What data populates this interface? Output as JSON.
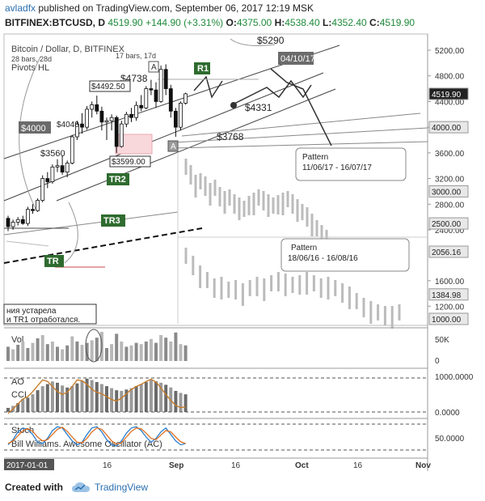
{
  "header": {
    "author": "avladfx",
    "published_text": "published on TradingView.com, September 06, 2017 12:19 MSK",
    "symbol": "BITFINEX:BTCUSD, D",
    "last": "4519.90",
    "change": "+144.90 (+3.31%)",
    "open_label": "O:",
    "open": "4375.00",
    "high_label": "H:",
    "high": "4538.40",
    "low_label": "L:",
    "low": "4352.40",
    "close_label": "C:",
    "close": "4519.90"
  },
  "chart_data": {
    "type": "candlestick",
    "title": "Bitcoin / Dollar, D, BITFINEX",
    "indicator_label": "Pivots HL",
    "bars_info_left": "28 bars, 28d",
    "bars_info_right": "17 bars, 17d",
    "ylim": [
      1000,
      5400
    ],
    "yticks": [
      5200,
      4800,
      4400,
      4000,
      3600,
      3200,
      2800,
      2400,
      1600,
      1200
    ],
    "price_tags": [
      "4519.90",
      "4000.00",
      "3000.00",
      "2500.00",
      "2056.16",
      "1384.98",
      "1000.00"
    ],
    "xticks": [
      "2017-01-01",
      "16",
      "Aug",
      "16",
      "Sep",
      "16",
      "Oct",
      "16",
      "Nov"
    ],
    "candles": [
      {
        "o": 2580,
        "h": 2620,
        "l": 2380,
        "c": 2450
      },
      {
        "o": 2450,
        "h": 2560,
        "l": 2400,
        "c": 2520
      },
      {
        "o": 2520,
        "h": 2600,
        "l": 2470,
        "c": 2560
      },
      {
        "o": 2560,
        "h": 2620,
        "l": 2480,
        "c": 2500
      },
      {
        "o": 2500,
        "h": 2760,
        "l": 2460,
        "c": 2720
      },
      {
        "o": 2720,
        "h": 2800,
        "l": 2650,
        "c": 2700
      },
      {
        "o": 2700,
        "h": 2890,
        "l": 2680,
        "c": 2860
      },
      {
        "o": 2860,
        "h": 3250,
        "l": 2830,
        "c": 3200
      },
      {
        "o": 3200,
        "h": 3300,
        "l": 3050,
        "c": 3150
      },
      {
        "o": 3150,
        "h": 3420,
        "l": 3120,
        "c": 3380
      },
      {
        "o": 3380,
        "h": 3500,
        "l": 3300,
        "c": 3400
      },
      {
        "o": 3400,
        "h": 3560,
        "l": 3260,
        "c": 3300
      },
      {
        "o": 3300,
        "h": 3480,
        "l": 3220,
        "c": 3440
      },
      {
        "o": 3440,
        "h": 3880,
        "l": 3420,
        "c": 3850
      },
      {
        "o": 3850,
        "h": 4100,
        "l": 3800,
        "c": 4050
      },
      {
        "o": 4050,
        "h": 4220,
        "l": 3900,
        "c": 4000
      },
      {
        "o": 4000,
        "h": 4330,
        "l": 3960,
        "c": 4280
      },
      {
        "o": 4280,
        "h": 4400,
        "l": 4150,
        "c": 4350
      },
      {
        "o": 4350,
        "h": 4492,
        "l": 4200,
        "c": 4250
      },
      {
        "o": 4250,
        "h": 4320,
        "l": 3950,
        "c": 4080
      },
      {
        "o": 4080,
        "h": 4150,
        "l": 3800,
        "c": 4100
      },
      {
        "o": 4100,
        "h": 4200,
        "l": 3950,
        "c": 4150
      },
      {
        "o": 4150,
        "h": 4180,
        "l": 3599,
        "c": 3700
      },
      {
        "o": 3700,
        "h": 4100,
        "l": 3680,
        "c": 4050
      },
      {
        "o": 4050,
        "h": 4240,
        "l": 4000,
        "c": 4200
      },
      {
        "o": 4200,
        "h": 4300,
        "l": 4080,
        "c": 4150
      },
      {
        "o": 4150,
        "h": 4400,
        "l": 4100,
        "c": 4340
      },
      {
        "o": 4340,
        "h": 4500,
        "l": 4250,
        "c": 4300
      },
      {
        "o": 4300,
        "h": 4640,
        "l": 4280,
        "c": 4600
      },
      {
        "o": 4600,
        "h": 4738,
        "l": 4500,
        "c": 4580
      },
      {
        "o": 4580,
        "h": 4700,
        "l": 4300,
        "c": 4400
      },
      {
        "o": 4400,
        "h": 4960,
        "l": 4380,
        "c": 4900
      },
      {
        "o": 4900,
        "h": 4980,
        "l": 4500,
        "c": 4600
      },
      {
        "o": 4600,
        "h": 4660,
        "l": 4150,
        "c": 4250
      },
      {
        "o": 4250,
        "h": 4300,
        "l": 3850,
        "c": 4000
      },
      {
        "o": 4000,
        "h": 4400,
        "l": 3950,
        "c": 4375
      },
      {
        "o": 4375,
        "h": 4538,
        "l": 4352,
        "c": 4520
      }
    ],
    "price_labels": [
      "$5290",
      "$4738",
      "$4492.50",
      "$4048",
      "$4000",
      "$3560",
      "$3599.00",
      "$3768",
      "$4331"
    ],
    "marker_labels": [
      "R1",
      "TR2",
      "TR3",
      "TR",
      "A",
      "A"
    ],
    "date_box": "04/10/17",
    "pattern1": {
      "title": "Pattern",
      "range": "11/06/17 - 16/07/17"
    },
    "pattern2": {
      "title": "Pattern",
      "range": "18/06/16 - 16/08/16"
    },
    "note_line1": "ния устарела",
    "note_line2": "и TR1 отработался.",
    "panels": [
      {
        "name": "Vol",
        "ticks": [
          "50K",
          "0"
        ]
      },
      {
        "name": "AO",
        "name2": "CCI",
        "ticks": [
          "1000.0000",
          "0.0000"
        ]
      },
      {
        "name": "Stoch",
        "name2": "Bill Williams. Awesome Oscillator (AC)",
        "ticks": [
          "50.0000"
        ]
      }
    ],
    "volume": [
      22,
      18,
      25,
      30,
      20,
      28,
      35,
      40,
      26,
      30,
      22,
      18,
      24,
      38,
      30,
      25,
      28,
      32,
      36,
      45,
      20,
      26,
      42,
      30,
      22,
      24,
      28,
      26,
      30,
      34,
      28,
      40,
      36,
      30,
      44,
      26,
      24
    ],
    "ao": [
      120,
      180,
      260,
      380,
      420,
      520,
      640,
      760,
      820,
      900,
      860,
      780,
      720,
      760,
      840,
      920,
      980,
      940,
      880,
      820,
      760,
      700,
      640,
      620,
      660,
      700,
      760,
      820,
      880,
      940,
      900,
      860,
      800,
      720,
      620,
      560,
      520
    ],
    "cci_line": [
      -40,
      80,
      220,
      360,
      420,
      560,
      720,
      880,
      840,
      700,
      560,
      480,
      540,
      700,
      880,
      860,
      760,
      620,
      540,
      500,
      420,
      340,
      300,
      380,
      500,
      620,
      700,
      760,
      840,
      900,
      820,
      660,
      480,
      320,
      180,
      120,
      140
    ],
    "stoch_k": [
      20,
      40,
      70,
      85,
      80,
      60,
      30,
      25,
      45,
      75,
      90,
      85,
      60,
      35,
      20,
      30,
      60,
      85,
      90,
      70,
      40,
      20,
      15,
      35,
      65,
      85,
      90,
      75,
      50,
      30,
      45,
      70,
      85,
      60,
      35,
      20,
      25
    ],
    "stoch_d": [
      25,
      35,
      55,
      75,
      82,
      72,
      50,
      35,
      40,
      60,
      80,
      88,
      72,
      50,
      30,
      28,
      45,
      70,
      85,
      80,
      58,
      35,
      22,
      28,
      50,
      72,
      85,
      82,
      65,
      45,
      40,
      58,
      75,
      70,
      50,
      32,
      25
    ]
  },
  "footer": {
    "created_with": "Created with",
    "brand": "TradingView"
  }
}
